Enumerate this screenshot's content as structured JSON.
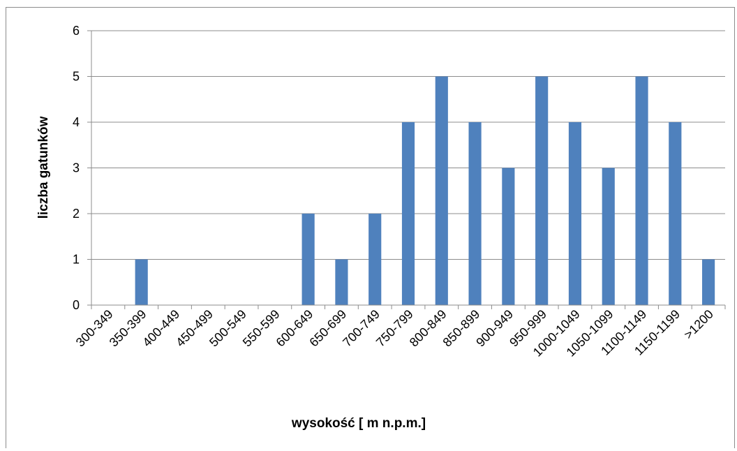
{
  "chart_data": {
    "type": "bar",
    "title": "",
    "xlabel": "wysokość [ m n.p.m.]",
    "ylabel": "liczba gatunków",
    "ylim": [
      0,
      6
    ],
    "yticks": [
      0,
      1,
      2,
      3,
      4,
      5,
      6
    ],
    "grid": "horizontal",
    "legend": "none",
    "bar_color": "#4f81bd",
    "categories": [
      "300-349",
      "350-399",
      "400-449",
      "450-499",
      "500-549",
      "550-599",
      "600-649",
      "650-699",
      "700-749",
      "750-799",
      "800-849",
      "850-899",
      "900-949",
      "950-999",
      "1000-1049",
      "1050-1099",
      "1100-1149",
      "1150-1199",
      ">1200"
    ],
    "values": [
      0,
      1,
      0,
      0,
      0,
      0,
      2,
      1,
      2,
      4,
      5,
      4,
      3,
      5,
      4,
      3,
      5,
      4,
      1
    ]
  }
}
